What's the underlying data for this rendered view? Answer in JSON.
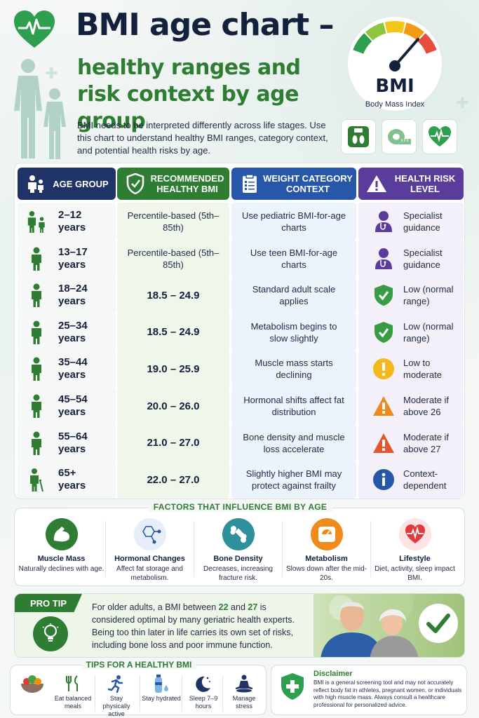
{
  "header": {
    "title": "BMI age chart –",
    "subtitle": "healthy ranges and risk context by age group",
    "intro": "BMI needs to be interpreted differently across life stages. Use this chart to understand healthy BMI ranges, category context, and potential health risks by age.",
    "gauge_label": "BMI",
    "gauge_sublabel": "Body Mass Index",
    "gauge_colors": [
      "#2e9e4f",
      "#8cc63f",
      "#f5c518",
      "#f39c12",
      "#e74c3c"
    ],
    "icons": [
      "feet-scale-icon",
      "measuring-tape-icon",
      "heart-pulse-icon"
    ]
  },
  "table": {
    "headers": {
      "age": "AGE GROUP",
      "bmi": "RECOMMENDED HEALTHY BMI",
      "category": "WEIGHT CATEGORY CONTEXT",
      "risk": "HEALTH RISK LEVEL"
    },
    "header_colors": {
      "age": "#1f3366",
      "bmi": "#2e7d32",
      "category": "#2757a8",
      "risk": "#5a3d9a"
    },
    "rows": [
      {
        "age": "2–12 years",
        "bmi": "Percentile-based (5th–85th)",
        "category": "Use pediatric BMI-for-age charts",
        "risk": "Specialist guidance",
        "risk_icon": "doctor-icon"
      },
      {
        "age": "13–17 years",
        "bmi": "Percentile-based (5th–85th)",
        "category": "Use teen BMI-for-age charts",
        "risk": "Specialist guidance",
        "risk_icon": "doctor-icon"
      },
      {
        "age": "18–24 years",
        "bmi": "18.5 – 24.9",
        "category": "Standard adult scale applies",
        "risk": "Low (normal range)",
        "risk_icon": "shield-check-icon"
      },
      {
        "age": "25–34 years",
        "bmi": "18.5 – 24.9",
        "category": "Metabolism begins to slow slightly",
        "risk": "Low (normal range)",
        "risk_icon": "shield-check-icon"
      },
      {
        "age": "35–44 years",
        "bmi": "19.0 – 25.9",
        "category": "Muscle mass starts declining",
        "risk": "Low to moderate",
        "risk_icon": "exclamation-circle-icon"
      },
      {
        "age": "45–54 years",
        "bmi": "20.0 – 26.0",
        "category": "Hormonal shifts affect fat distribution",
        "risk": "Moderate if above 26",
        "risk_icon": "warning-orange-icon"
      },
      {
        "age": "55–64 years",
        "bmi": "21.0 – 27.0",
        "category": "Bone density and muscle loss accelerate",
        "risk": "Moderate if above 27",
        "risk_icon": "warning-red-icon"
      },
      {
        "age": "65+ years",
        "bmi": "22.0 – 27.0",
        "category": "Slightly higher BMI may protect against frailty",
        "risk": "Context-dependent",
        "risk_icon": "info-icon"
      }
    ]
  },
  "factors": {
    "title": "FACTORS THAT INFLUENCE BMI BY AGE",
    "items": [
      {
        "name": "Muscle Mass",
        "desc": "Naturally declines with age.",
        "icon": "flexed-arm-icon"
      },
      {
        "name": "Hormonal Changes",
        "desc": "Affect fat storage and metabolism.",
        "icon": "molecule-icon"
      },
      {
        "name": "Bone Density",
        "desc": "Decreases, increasing fracture risk.",
        "icon": "bone-icon"
      },
      {
        "name": "Metabolism",
        "desc": "Slows down after the mid-20s.",
        "icon": "scale-icon"
      },
      {
        "name": "Lifestyle",
        "desc": "Diet, activity, sleep impact BMI.",
        "icon": "heart-pulse-icon"
      }
    ]
  },
  "protip": {
    "badge": "PRO TIP",
    "text_before": "For older adults, a BMI between ",
    "highlight_1": "22",
    "text_mid": " and ",
    "highlight_2": "27",
    "text_after": " is considered optimal by many geriatric health experts. Being too thin later in life carries its own set of risks, including bone loss and poor immune function."
  },
  "tips": {
    "title": "TIPS FOR A HEALTHY BMI",
    "items": [
      {
        "label": "",
        "icon": "vegetables-icon"
      },
      {
        "label": "Eat balanced meals",
        "icon": "fork-knife-icon"
      },
      {
        "label": "Stay physically active",
        "icon": "runner-icon"
      },
      {
        "label": "Stay hydrated",
        "icon": "water-bottle-icon"
      },
      {
        "label": "Sleep 7–9 hours",
        "icon": "moon-icon"
      },
      {
        "label": "Manage stress",
        "icon": "meditation-icon"
      }
    ]
  },
  "disclaimer": {
    "title": "Disclaimer",
    "text": "BMI is a general screening tool and may not accurately reflect body fat in athletes, pregnant women, or individuals with high muscle mass. Always consult a healthcare professional for personalized advice."
  }
}
